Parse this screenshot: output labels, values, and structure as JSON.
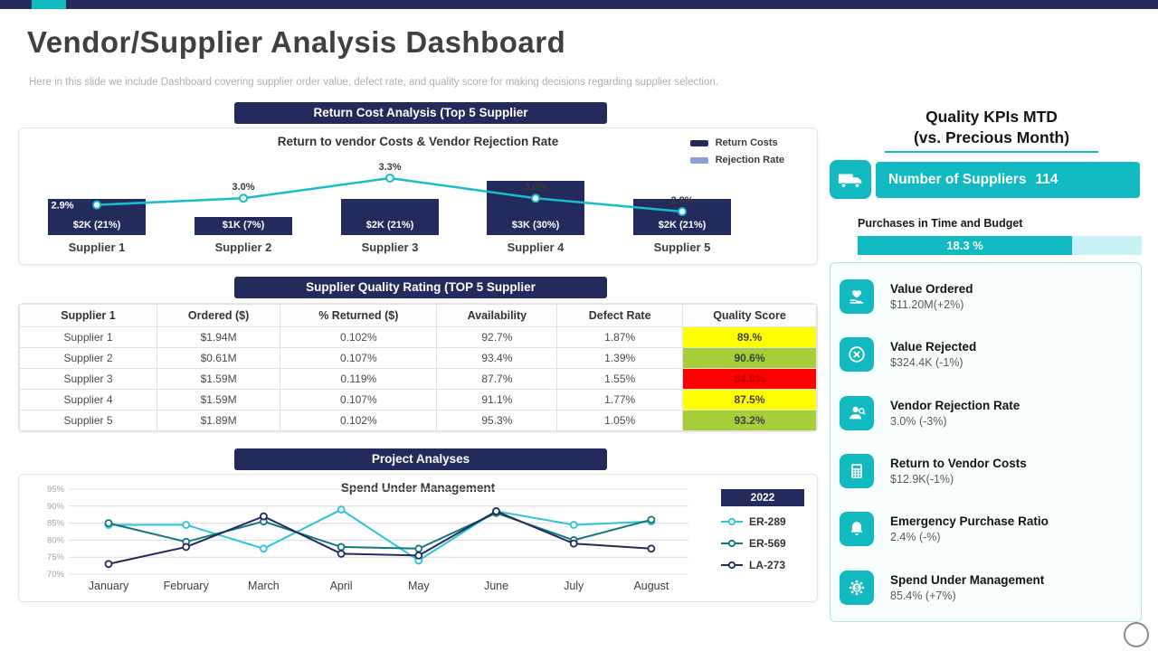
{
  "page": {
    "title": "Vendor/Supplier Analysis Dashboard",
    "subtitle": "Here in this slide we include Dashboard covering supplier order value, defect rate, and quality score for making decisions regarding supplier selection."
  },
  "colors": {
    "navy": "#232A5C",
    "teal": "#11B9C1",
    "progress_track": "#C8F2F5",
    "score_yellow": "#FFFF00",
    "score_green": "#A6CE39",
    "score_red": "#FF0000"
  },
  "sections": {
    "return_cost": {
      "header": "Return Cost Analysis (Top 5 Supplier"
    },
    "quality_rating": {
      "header": "Supplier Quality Rating (TOP 5 Supplier"
    },
    "project": {
      "header": "Project Analyses"
    }
  },
  "chart_data": [
    {
      "id": "return-cost-analysis",
      "type": "bar",
      "title": "Return to vendor Costs & Vendor Rejection Rate",
      "categories": [
        "Supplier 1",
        "Supplier 2",
        "Supplier 3",
        "Supplier 4",
        "Supplier 5"
      ],
      "series": [
        {
          "name": "Return Costs",
          "type": "bar",
          "unit": "$K",
          "values": [
            2,
            1,
            2,
            3,
            2
          ],
          "labels": [
            "$2K (21%)",
            "$1K (7%)",
            "$2K (21%)",
            "$3K (30%)",
            "$2K (21%)"
          ],
          "color": "#232A5C"
        },
        {
          "name": "Rejection Rate",
          "type": "line",
          "unit": "%",
          "values": [
            2.9,
            3.0,
            3.3,
            3.0,
            2.8
          ],
          "labels": [
            "2.9%",
            "3.0%",
            "3.3%",
            "3.0%",
            "2.8%"
          ],
          "color": "#17BDC9"
        }
      ],
      "legend": [
        {
          "label": "Return Costs",
          "color": "#232A5C"
        },
        {
          "label": "Rejection Rate",
          "color": "#8E9ED6"
        }
      ],
      "legend_position": "top-right",
      "grid": false
    },
    {
      "id": "spend-under-management",
      "type": "line",
      "title": "Spend Under Management",
      "x": [
        "January",
        "February",
        "March",
        "April",
        "May",
        "June",
        "July",
        "August"
      ],
      "ylim": [
        70,
        95
      ],
      "yticks": [
        "95%",
        "90%",
        "85%",
        "80%",
        "75%",
        "70%"
      ],
      "legend_title": "2022",
      "legend_position": "right",
      "grid": true,
      "series": [
        {
          "name": "ER-289",
          "color": "#2BC4D9",
          "values": [
            84.5,
            84.5,
            77.5,
            89,
            74,
            88.5,
            84.5,
            85.5
          ]
        },
        {
          "name": "ER-569",
          "color": "#13777E",
          "values": [
            85,
            79.5,
            85.5,
            78,
            77.5,
            88,
            80,
            86
          ]
        },
        {
          "name": "LA-273",
          "color": "#232A5C",
          "values": [
            73,
            78,
            87,
            76,
            75.5,
            88.5,
            79,
            77.5
          ]
        }
      ]
    }
  ],
  "table": {
    "headers": [
      "Supplier 1",
      "Ordered ($)",
      "% Returned ($)",
      "Availability",
      "Defect Rate",
      "Quality Score"
    ],
    "rows": [
      {
        "cells": [
          "Supplier 1",
          "$1.94M",
          "0.102%",
          "92.7%",
          "1.87%"
        ],
        "score": "89.%",
        "score_bg": "#FFFF00",
        "score_fg": "#3F3F3F"
      },
      {
        "cells": [
          "Supplier 2",
          "$0.61M",
          "0.107%",
          "93.4%",
          "1.39%"
        ],
        "score": "90.6%",
        "score_bg": "#A6CE39",
        "score_fg": "#3F3F3F"
      },
      {
        "cells": [
          "Supplier 3",
          "$1.59M",
          "0.119%",
          "87.7%",
          "1.55%"
        ],
        "score": "84.6%",
        "score_bg": "#FF0000",
        "score_fg": "#C00000"
      },
      {
        "cells": [
          "Supplier 4",
          "$1.59M",
          "0.107%",
          "91.1%",
          "1.77%"
        ],
        "score": "87.5%",
        "score_bg": "#FFFF00",
        "score_fg": "#3F3F3F"
      },
      {
        "cells": [
          "Supplier 5",
          "$1.89M",
          "0.102%",
          "95.3%",
          "1.05%"
        ],
        "score": "93.2%",
        "score_bg": "#A6CE39",
        "score_fg": "#3F3F3F"
      }
    ]
  },
  "kpi_panel": {
    "title_line1": "Quality KPIs MTD",
    "title_line2": "(vs. Precious Month)",
    "suppliers_icon": "delivery-truck-icon",
    "suppliers_label": "Number of Suppliers",
    "suppliers_value": "114",
    "purchases_label": "Purchases in Time and Budget",
    "purchases_value": "18.3 %",
    "items": [
      {
        "icon": "hand-heart-icon",
        "title": "Value Ordered",
        "value": "$11.20M(+2%)"
      },
      {
        "icon": "reject-circle-icon",
        "title": "Value Rejected",
        "value": "$324.4K (-1%)"
      },
      {
        "icon": "person-search-icon",
        "title": "Vendor Rejection Rate",
        "value": "3.0% (-3%)"
      },
      {
        "icon": "calculator-icon",
        "title": "Return to Vendor Costs",
        "value": "$12.9K(-1%)"
      },
      {
        "icon": "alarm-bell-icon",
        "title": "Emergency Purchase Ratio",
        "value": "2.4% (-%)"
      },
      {
        "icon": "gear-dollar-icon",
        "title": "Spend Under Management",
        "value": "85.4% (+7%)"
      }
    ]
  }
}
